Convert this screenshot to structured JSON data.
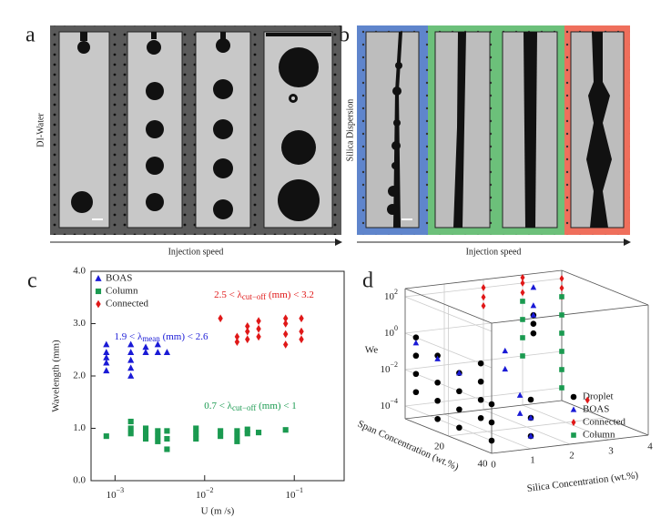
{
  "panel_a": {
    "letter": "a",
    "side_label": "DI-Water",
    "arrow_label": "Injection speed"
  },
  "panel_b": {
    "letter": "b",
    "side_label": "Silica Dispersion",
    "arrow_label": "Injection speed"
  },
  "chart_data": [
    {
      "type": "scatter",
      "letter": "c",
      "xlabel": "U (m /s)",
      "ylabel": "Wavelength (mm)",
      "xscale": "log",
      "xlim": [
        0.00054,
        0.36
      ],
      "ylim": [
        0,
        4
      ],
      "xticks": [
        {
          "value": 0.001,
          "label": "10",
          "exponent": "−3"
        },
        {
          "value": 0.01,
          "label": "10",
          "exponent": "−2"
        },
        {
          "value": 0.1,
          "label": "10",
          "exponent": "−1"
        }
      ],
      "yticks": [
        {
          "value": 0,
          "label": "0.0"
        },
        {
          "value": 1,
          "label": "1.0"
        },
        {
          "value": 2,
          "label": "2.0"
        },
        {
          "value": 3,
          "label": "3.0"
        },
        {
          "value": 4,
          "label": "4.0"
        }
      ],
      "legend": "upper left",
      "series": [
        {
          "name": "BOAS",
          "color": "#1a1ad6",
          "marker": "triangle",
          "x": [
            0.0008,
            0.0008,
            0.0008,
            0.0008,
            0.0008,
            0.0015,
            0.0015,
            0.0015,
            0.0015,
            0.0015,
            0.0022,
            0.0022,
            0.003,
            0.003,
            0.0038
          ],
          "y": [
            2.1,
            2.25,
            2.35,
            2.45,
            2.6,
            2.0,
            2.15,
            2.3,
            2.45,
            2.6,
            2.45,
            2.55,
            2.45,
            2.6,
            2.45
          ]
        },
        {
          "name": "Column",
          "color": "#1a9a50",
          "marker": "square",
          "x": [
            0.0008,
            0.0015,
            0.0015,
            0.0015,
            0.0022,
            0.0022,
            0.0022,
            0.003,
            0.003,
            0.003,
            0.0038,
            0.0038,
            0.0038,
            0.008,
            0.008,
            0.008,
            0.015,
            0.015,
            0.023,
            0.023,
            0.023,
            0.03,
            0.03,
            0.04,
            0.08
          ],
          "y": [
            0.85,
            1.13,
            1.0,
            0.9,
            1.0,
            0.9,
            0.8,
            0.95,
            0.85,
            0.75,
            0.95,
            0.8,
            0.6,
            1.0,
            0.9,
            0.8,
            0.95,
            0.85,
            0.95,
            0.85,
            0.75,
            0.98,
            0.9,
            0.92,
            0.97
          ]
        },
        {
          "name": "Connected",
          "color": "#e01818",
          "marker": "diamond",
          "x": [
            0.015,
            0.023,
            0.023,
            0.03,
            0.03,
            0.03,
            0.04,
            0.04,
            0.04,
            0.08,
            0.08,
            0.08,
            0.08,
            0.12,
            0.12,
            0.12
          ],
          "y": [
            3.1,
            2.65,
            2.75,
            2.7,
            2.85,
            2.95,
            2.75,
            2.9,
            3.05,
            2.6,
            2.8,
            3.0,
            3.1,
            2.7,
            2.85,
            3.1
          ]
        }
      ],
      "annotations": [
        {
          "color": "#1a1ad6",
          "parts": [
            "1.9 < λ",
            "mean",
            " (mm) < 2.6"
          ]
        },
        {
          "color": "#e01818",
          "parts": [
            "2.5 < λ",
            "cut−off",
            " (mm) < 3.2"
          ]
        },
        {
          "color": "#1a9a50",
          "parts": [
            "0.7 < λ",
            "cut−off",
            " (mm) < 1"
          ]
        }
      ]
    },
    {
      "type": "scatter3d",
      "letter": "d",
      "xlabel": "Silica Concentration (wt.%)",
      "ylabel": "Span Concentration (wt.%)",
      "zlabel": "We",
      "zscale": "log",
      "xlim": [
        0,
        4
      ],
      "ylim": [
        0,
        40
      ],
      "zlim": [
        2e-05,
        280
      ],
      "xticks": [
        0,
        1,
        2,
        3,
        4
      ],
      "yticks": [
        20,
        40
      ],
      "zticks": [
        {
          "value": 0.0001,
          "label": "10",
          "exponent": "−4"
        },
        {
          "value": 0.01,
          "label": "10",
          "exponent": "−2"
        },
        {
          "value": 1,
          "label": "10",
          "exponent": "0"
        },
        {
          "value": 100,
          "label": "10",
          "exponent": "2"
        }
      ],
      "series": [
        {
          "name": "Droplet",
          "color": "#000000",
          "marker": "circle",
          "x": [
            0,
            0,
            0,
            0,
            0,
            0,
            0,
            0,
            0,
            0,
            0,
            0,
            0,
            0,
            0,
            0,
            0,
            0,
            0,
            1,
            1,
            1,
            3,
            3,
            3
          ],
          "y": [
            5,
            5,
            5,
            5,
            15,
            15,
            15,
            15,
            25,
            25,
            25,
            25,
            35,
            35,
            35,
            35,
            40,
            40,
            40,
            40,
            40,
            40,
            5,
            5,
            5
          ],
          "z": [
            0.001,
            0.01,
            0.1,
            1,
            0.0001,
            0.001,
            0.01,
            0.3,
            0.0001,
            0.001,
            0.01,
            0.1,
            0.001,
            0.01,
            0.1,
            1,
            0.0001,
            0.001,
            0.01,
            0.01,
            0.001,
            0.0001,
            0.3,
            1,
            3
          ]
        },
        {
          "name": "BOAS",
          "color": "#1a1ad6",
          "marker": "triangle",
          "x": [
            0,
            0,
            0,
            1,
            1,
            1,
            1,
            2,
            2,
            3,
            3,
            3
          ],
          "y": [
            5,
            15,
            25,
            35,
            35,
            40,
            40,
            10,
            10,
            5,
            5,
            5
          ],
          "z": [
            0.5,
            0.2,
            0.1,
            0.01,
            0.001,
            0.001,
            0.0001,
            0.1,
            0.01,
            10,
            100,
            3
          ]
        },
        {
          "name": "Connected",
          "color": "#e01818",
          "marker": "diamond",
          "x": [
            2,
            2,
            2,
            3,
            3,
            3,
            4,
            4,
            4,
            3
          ],
          "y": [
            0,
            0,
            0,
            0,
            0,
            0,
            0,
            0,
            0,
            30
          ],
          "z": [
            10,
            30,
            100,
            30,
            100,
            200,
            10,
            30,
            100,
            0.001
          ]
        },
        {
          "name": "Column",
          "color": "#1a9a50",
          "marker": "square",
          "x": [
            3,
            3,
            3,
            3,
            4,
            4,
            4,
            4,
            4,
            4
          ],
          "y": [
            0,
            0,
            0,
            0,
            0,
            0,
            0,
            0,
            0,
            0
          ],
          "z": [
            0.01,
            0.1,
            1,
            10,
            0.001,
            0.01,
            0.1,
            1,
            10,
            0.0001
          ]
        }
      ]
    }
  ]
}
